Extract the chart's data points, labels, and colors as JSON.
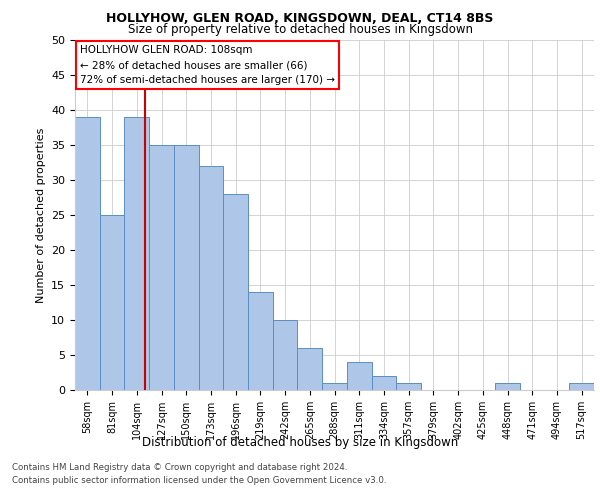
{
  "title1": "HOLLYHOW, GLEN ROAD, KINGSDOWN, DEAL, CT14 8BS",
  "title2": "Size of property relative to detached houses in Kingsdown",
  "xlabel": "Distribution of detached houses by size in Kingsdown",
  "ylabel": "Number of detached properties",
  "categories": [
    "58sqm",
    "81sqm",
    "104sqm",
    "127sqm",
    "150sqm",
    "173sqm",
    "196sqm",
    "219sqm",
    "242sqm",
    "265sqm",
    "288sqm",
    "311sqm",
    "334sqm",
    "357sqm",
    "379sqm",
    "402sqm",
    "425sqm",
    "448sqm",
    "471sqm",
    "494sqm",
    "517sqm"
  ],
  "values": [
    39,
    25,
    39,
    35,
    35,
    32,
    28,
    14,
    10,
    6,
    1,
    4,
    2,
    1,
    0,
    0,
    0,
    1,
    0,
    0,
    1
  ],
  "bar_color": "#aec6e8",
  "bar_edge_color": "#5a8fc2",
  "property_label": "HOLLYHOW GLEN ROAD: 108sqm",
  "annotation_line1": "← 28% of detached houses are smaller (66)",
  "annotation_line2": "72% of semi-detached houses are larger (170) →",
  "vline_color": "#cc0000",
  "vline_position": 2.35,
  "footer1": "Contains HM Land Registry data © Crown copyright and database right 2024.",
  "footer2": "Contains public sector information licensed under the Open Government Licence v3.0.",
  "ylim": [
    0,
    50
  ],
  "yticks": [
    0,
    5,
    10,
    15,
    20,
    25,
    30,
    35,
    40,
    45,
    50
  ],
  "background_color": "#ffffff",
  "grid_color": "#cccccc"
}
